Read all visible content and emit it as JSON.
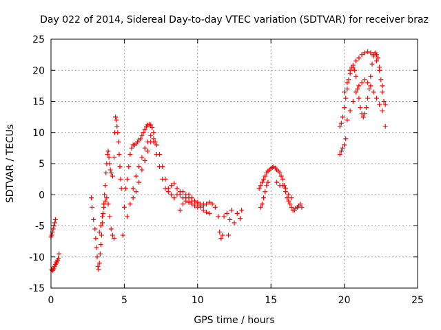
{
  "chart_data": {
    "type": "scatter",
    "title": "Day 022 of 2014, Sidereal Day-to-day VTEC variation (SDTVAR) for receiver braz",
    "xlabel": "GPS time / hours",
    "ylabel": "SDTVAR / TECUs",
    "xlim": [
      0,
      25
    ],
    "ylim": [
      -15,
      25
    ],
    "xticks": [
      0,
      5,
      10,
      15,
      20,
      25
    ],
    "yticks": [
      -15,
      -10,
      -5,
      0,
      5,
      10,
      15,
      20,
      25
    ],
    "grid": true,
    "marker": "+",
    "color": "#ff0000",
    "series": [
      {
        "name": "SDTVAR",
        "x": [
          0.0,
          0.05,
          0.1,
          0.15,
          0.2,
          0.25,
          0.3,
          0.05,
          0.1,
          0.15,
          0.2,
          0.25,
          0.3,
          0.35,
          0.4,
          0.45,
          0.5,
          0.55,
          2.75,
          2.8,
          2.9,
          3.0,
          3.05,
          3.1,
          3.15,
          3.2,
          3.25,
          3.3,
          3.35,
          3.4,
          3.45,
          3.5,
          3.55,
          3.6,
          3.65,
          3.7,
          3.75,
          3.8,
          3.85,
          3.9,
          3.95,
          4.0,
          4.05,
          4.1,
          4.2,
          4.3,
          4.35,
          4.4,
          4.45,
          4.5,
          4.55,
          4.6,
          4.65,
          4.7,
          4.75,
          4.8,
          3.3,
          3.4,
          3.5,
          3.6,
          3.7,
          3.8,
          3.9,
          4.0,
          4.1,
          4.2,
          4.3,
          4.9,
          5.0,
          5.1,
          5.2,
          5.3,
          5.4,
          5.5,
          5.6,
          5.7,
          5.8,
          5.9,
          6.0,
          6.1,
          6.2,
          6.3,
          6.4,
          6.5,
          6.6,
          6.7,
          6.8,
          6.9,
          7.0,
          7.1,
          5.2,
          5.4,
          5.6,
          5.8,
          6.0,
          6.2,
          6.4,
          6.6,
          6.8,
          7.0,
          7.2,
          7.4,
          7.6,
          7.8,
          8.0,
          8.2,
          8.4,
          8.6,
          8.8,
          9.0,
          9.2,
          9.4,
          9.6,
          9.8,
          10.0,
          10.2,
          10.4,
          10.6,
          10.8,
          5.6,
          5.8,
          6.0,
          6.2,
          6.4,
          6.6,
          6.8,
          7.0,
          7.2,
          7.4,
          7.6,
          7.8,
          8.0,
          8.2,
          8.4,
          8.6,
          8.8,
          9.0,
          9.2,
          9.4,
          9.6,
          9.8,
          10.0,
          10.2,
          10.4,
          8.8,
          9.0,
          9.2,
          9.4,
          9.6,
          9.8,
          10.0,
          10.2,
          10.4,
          10.6,
          10.8,
          11.0,
          11.2,
          11.4,
          11.5,
          11.6,
          11.7,
          11.8,
          12.0,
          12.1,
          12.2,
          12.3,
          12.5,
          12.7,
          12.9,
          13.0,
          14.2,
          14.3,
          14.4,
          14.5,
          14.6,
          14.7,
          14.8,
          14.9,
          15.0,
          15.1,
          15.2,
          15.3,
          15.4,
          15.5,
          15.6,
          15.7,
          15.8,
          15.9,
          16.0,
          16.1,
          16.2,
          16.3,
          16.4,
          16.5,
          16.6,
          16.7,
          16.8,
          16.9,
          17.0,
          17.1,
          14.3,
          14.4,
          14.5,
          14.6,
          14.7,
          14.8,
          15.4,
          15.6,
          15.8,
          16.0,
          16.2,
          16.4,
          19.7,
          19.8,
          19.9,
          20.0,
          20.1,
          19.7,
          19.8,
          19.9,
          20.0,
          20.1,
          20.2,
          20.3,
          20.4,
          20.5,
          20.6,
          20.7,
          20.8,
          20.9,
          21.0,
          21.1,
          21.2,
          21.3,
          21.4,
          21.5,
          21.6,
          21.7,
          21.8,
          21.9,
          22.0,
          22.1,
          22.2,
          22.3,
          22.4,
          22.5,
          22.6,
          22.7,
          22.8,
          20.0,
          20.2,
          20.4,
          20.6,
          20.8,
          21.0,
          21.2,
          21.4,
          21.6,
          21.8,
          22.0,
          22.2,
          22.4,
          22.6,
          22.8,
          20.2,
          20.4,
          20.6,
          20.8,
          21.0,
          21.2,
          21.4,
          21.6,
          21.8,
          22.0,
          22.2,
          22.4,
          22.6
        ],
        "y": [
          -6.8,
          -6.5,
          -6.0,
          -5.5,
          -5.0,
          -4.5,
          -4.0,
          -12.0,
          -12.2,
          -12.0,
          -11.8,
          -11.5,
          -11.2,
          -11.0,
          -10.8,
          -10.5,
          -10.2,
          -9.5,
          -0.5,
          -2.0,
          -4.0,
          -5.5,
          -7.0,
          -8.5,
          -10.0,
          -11.5,
          -12.0,
          -11.0,
          -9.5,
          -8.0,
          -6.5,
          -4.5,
          -3.0,
          -1.5,
          0.0,
          1.5,
          3.5,
          5.0,
          6.5,
          7.0,
          6.0,
          5.0,
          4.0,
          3.5,
          3.0,
          6.0,
          10.0,
          12.5,
          12.0,
          11.0,
          10.0,
          8.5,
          6.5,
          4.5,
          2.5,
          1.0,
          -6.0,
          -5.0,
          -3.5,
          -2.0,
          -1.0,
          -0.5,
          -1.5,
          -3.5,
          -5.5,
          -6.5,
          -7.0,
          -6.5,
          -2.0,
          1.0,
          2.5,
          4.5,
          6.5,
          7.5,
          8.0,
          8.0,
          8.2,
          8.5,
          8.8,
          9.0,
          9.5,
          10.0,
          10.5,
          11.0,
          11.2,
          11.3,
          11.2,
          10.8,
          10.0,
          8.5,
          -3.5,
          -1.5,
          1.0,
          3.0,
          4.5,
          6.0,
          7.5,
          8.5,
          9.5,
          8.5,
          6.5,
          4.5,
          2.5,
          1.0,
          0.5,
          1.5,
          1.8,
          1.0,
          0.0,
          -0.5,
          -1.0,
          -1.2,
          -1.5,
          -1.8,
          -2.0,
          -1.8,
          -1.5,
          -1.5,
          -1.2,
          -0.5,
          0.5,
          2.0,
          4.0,
          5.5,
          7.0,
          8.5,
          9.0,
          8.0,
          6.5,
          4.5,
          2.5,
          1.0,
          0.0,
          -0.5,
          0.0,
          0.5,
          0.5,
          0.0,
          -0.5,
          -1.0,
          -1.0,
          -1.2,
          -1.5,
          -1.8,
          -2.5,
          -1.5,
          -0.5,
          0.0,
          -0.5,
          -1.0,
          -1.5,
          -2.0,
          -2.5,
          -2.8,
          -3.0,
          -1.5,
          -2.0,
          -3.5,
          -6.0,
          -7.0,
          -6.5,
          -3.5,
          -3.0,
          -6.5,
          -4.0,
          -2.5,
          -4.5,
          -3.0,
          -3.8,
          -2.5,
          1.0,
          1.5,
          2.0,
          2.5,
          3.0,
          3.5,
          3.8,
          4.0,
          4.2,
          4.4,
          4.5,
          4.3,
          4.0,
          3.8,
          3.5,
          3.0,
          2.5,
          1.5,
          0.5,
          -0.5,
          -1.0,
          -1.5,
          -2.0,
          -2.5,
          -2.5,
          -2.2,
          -2.0,
          -1.8,
          -1.5,
          -2.0,
          -2.0,
          -1.5,
          -0.5,
          0.5,
          1.5,
          2.0,
          2.0,
          1.5,
          1.5,
          1.0,
          0.0,
          -0.5,
          6.5,
          7.0,
          7.5,
          8.0,
          9.0,
          11.0,
          11.5,
          12.5,
          14.0,
          15.5,
          17.0,
          18.5,
          20.0,
          20.5,
          20.8,
          20.0,
          19.0,
          17.0,
          15.5,
          14.0,
          13.0,
          12.5,
          13.0,
          14.0,
          15.5,
          17.0,
          19.0,
          21.0,
          22.5,
          22.8,
          22.5,
          22.0,
          20.5,
          18.5,
          16.5,
          15.0,
          14.5,
          16.5,
          18.0,
          19.5,
          20.5,
          21.5,
          22.0,
          22.5,
          22.8,
          23.0,
          22.8,
          22.3,
          21.5,
          20.0,
          17.5,
          11.0,
          12.0,
          13.5,
          15.0,
          16.5,
          17.5,
          18.0,
          18.5,
          18.0,
          17.5,
          16.5,
          15.5,
          14.5,
          13.5
        ]
      }
    ]
  }
}
